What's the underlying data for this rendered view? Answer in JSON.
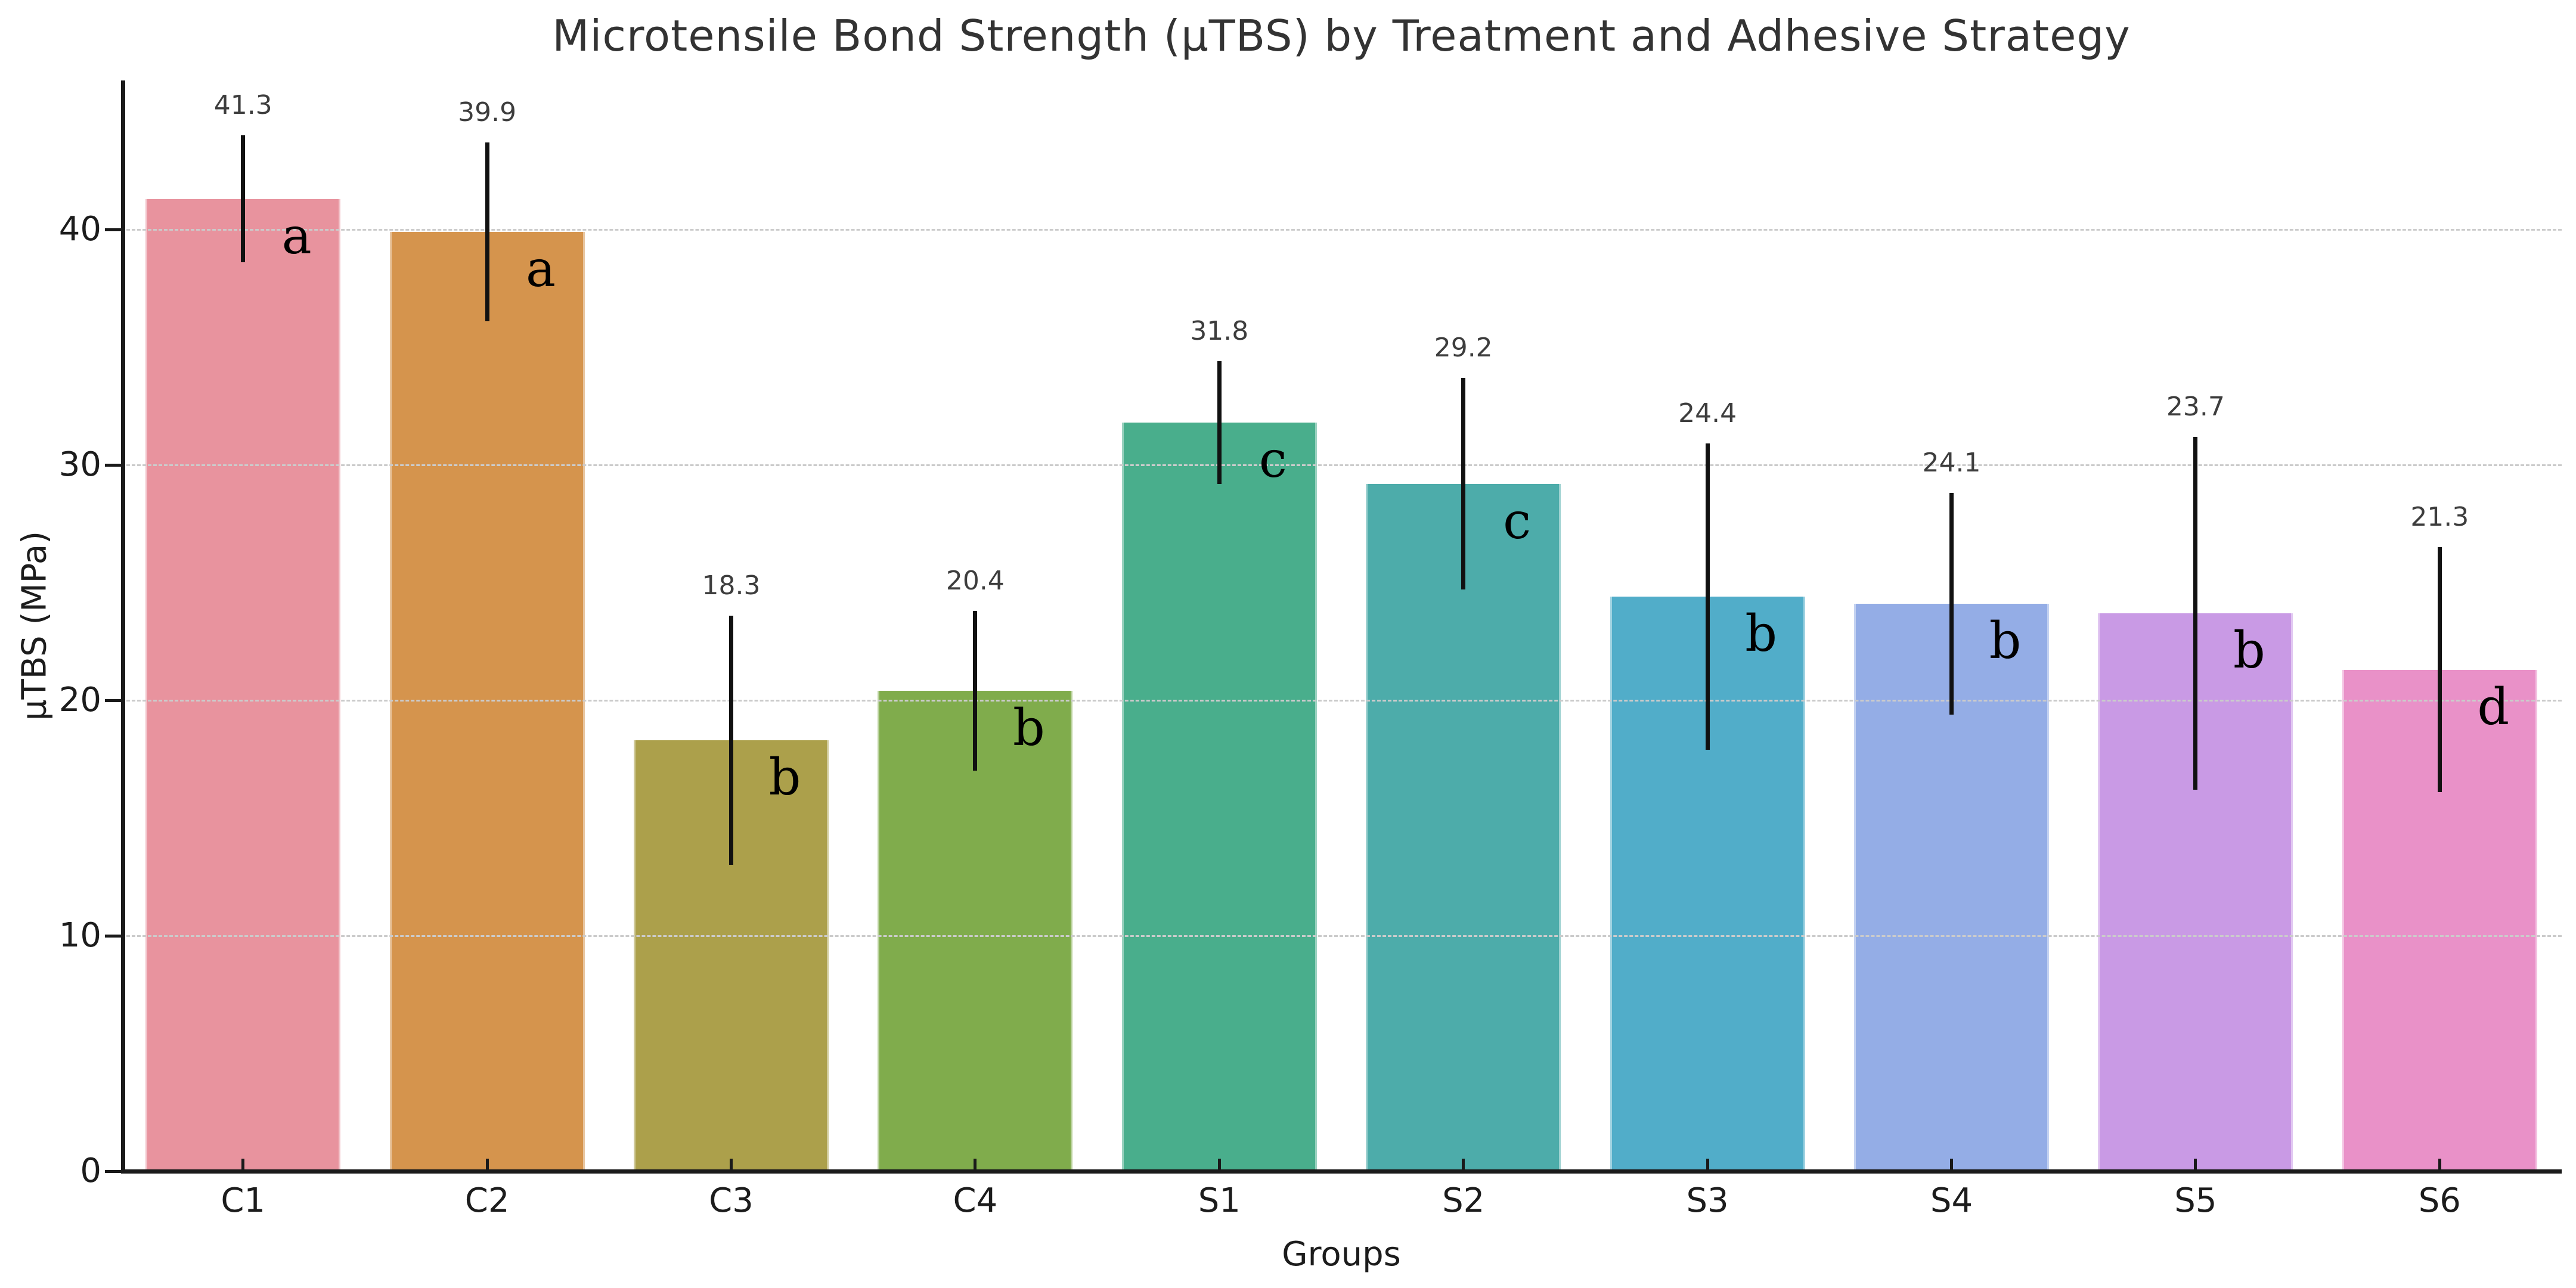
{
  "chart_data": {
    "type": "bar",
    "title": "Microtensile Bond Strength (μTBS) by Treatment and Adhesive Strategy",
    "xlabel": "Groups",
    "ylabel": "μTBS (MPa)",
    "categories": [
      "C1",
      "C2",
      "C3",
      "C4",
      "S1",
      "S2",
      "S3",
      "S4",
      "S5",
      "S6"
    ],
    "values": [
      41.3,
      39.9,
      18.3,
      20.4,
      31.8,
      29.2,
      24.4,
      24.1,
      23.7,
      21.3
    ],
    "errors": [
      2.7,
      3.8,
      5.3,
      3.4,
      2.6,
      4.5,
      6.5,
      4.7,
      7.5,
      5.2
    ],
    "value_labels": [
      "41.3",
      "39.9",
      "18.3",
      "20.4",
      "31.8",
      "29.2",
      "24.4",
      "24.1",
      "23.7",
      "21.3"
    ],
    "significance_letters": [
      "a",
      "a",
      "b",
      "b",
      "c",
      "c",
      "b",
      "b",
      "b",
      "d"
    ],
    "bar_colors": [
      "#e8939e",
      "#d5944d",
      "#aca04b",
      "#80ac4c",
      "#49ae8c",
      "#4dacaa",
      "#51adc9",
      "#94ade6",
      "#c99ae5",
      "#e991c8"
    ],
    "yticks": [
      0,
      10,
      20,
      30,
      40
    ],
    "ylim": [
      0,
      46.3
    ],
    "grid": {
      "axis": "y",
      "style": "dashed",
      "color": "#cbcbcb",
      "drawn_over_bars": true
    },
    "error_bar_color": "#111111",
    "error_bar_caps": false,
    "legend_position": "none"
  }
}
